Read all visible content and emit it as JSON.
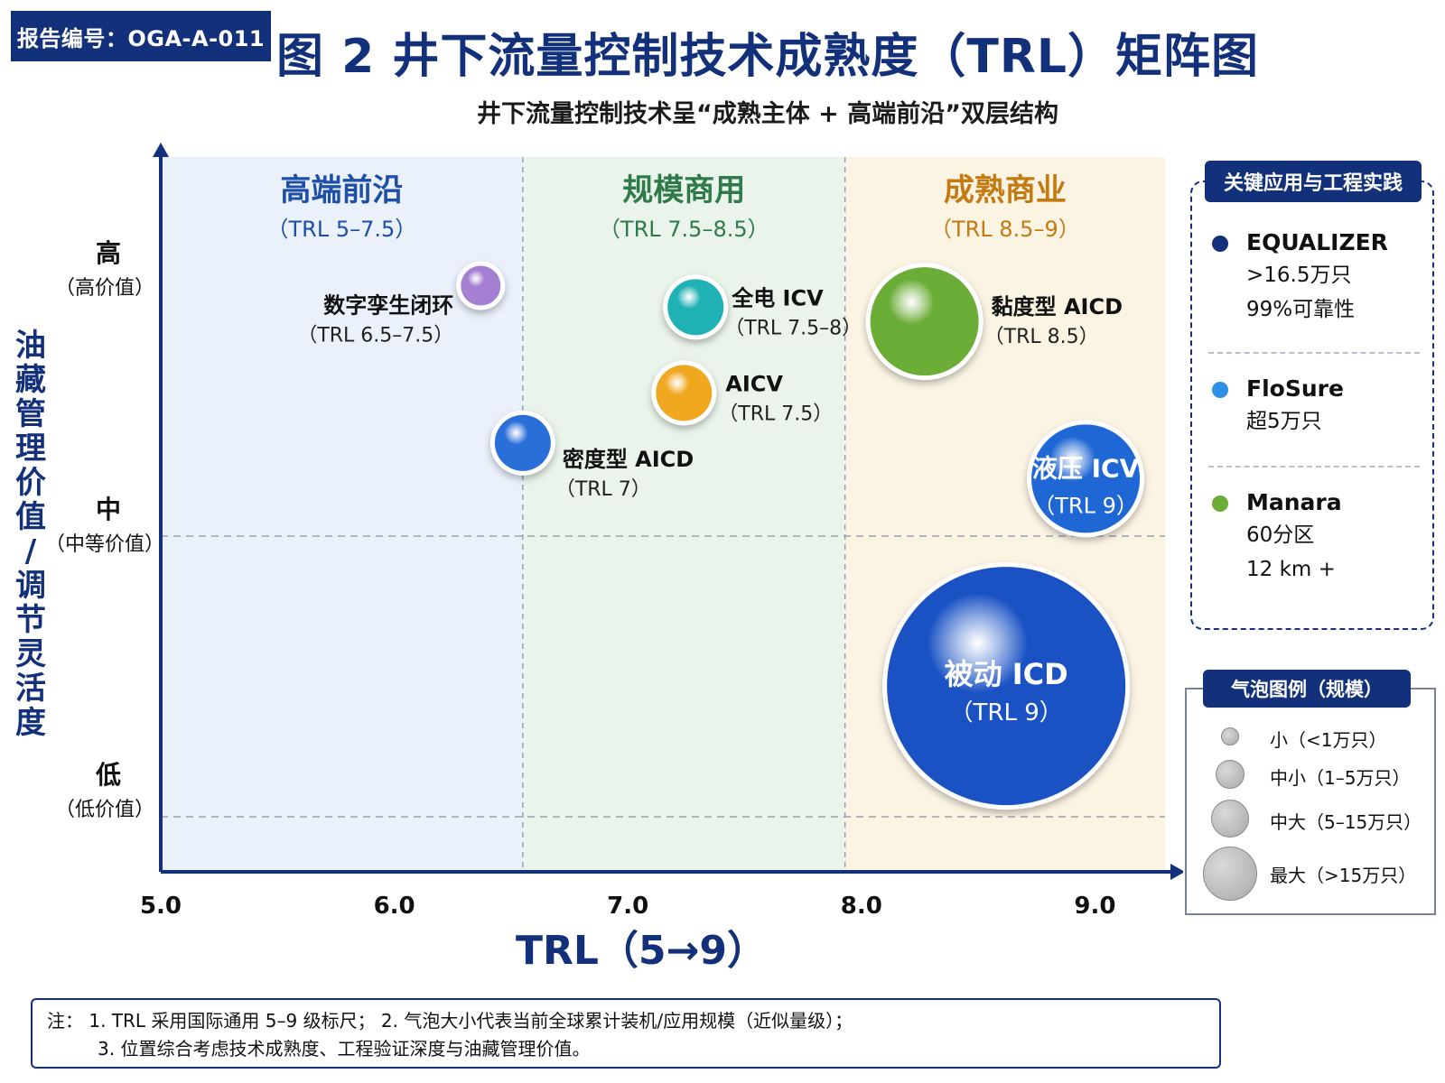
{
  "header": {
    "report_id": "报告编号：OGA-A-011",
    "title": "图 2 井下流量控制技术成熟度（TRL）矩阵图",
    "subtitle": "井下流量控制技术呈“成熟主体 + 高端前沿”双层结构"
  },
  "chart_data": {
    "type": "scatter",
    "title": "图 2 井下流量控制技术成熟度（TRL）矩阵图",
    "xlabel": "TRL（5→9）",
    "ylabel": "油藏管理价值／调节灵活度",
    "xlim": [
      5.0,
      9.3
    ],
    "x_ticks": [
      "5.0",
      "6.0",
      "7.0",
      "8.0",
      "9.0"
    ],
    "y_levels": [
      {
        "label": "高",
        "sub": "（高价值）"
      },
      {
        "label": "中",
        "sub": "（中等价值）"
      },
      {
        "label": "低",
        "sub": "（低价值）"
      }
    ],
    "zones": [
      {
        "name": "高端前沿",
        "range": "（TRL 5–7.5）",
        "from": 5.0,
        "to": 6.55,
        "color": "#eaf1fb",
        "text_color": "#1e4fa8"
      },
      {
        "name": "规模商用",
        "range": "（TRL 7.5–8.5）",
        "from": 6.55,
        "to": 7.93,
        "color": "#eaf4ea",
        "text_color": "#2e7a4a"
      },
      {
        "name": "成熟商业",
        "range": "（TRL 8.5–9）",
        "from": 7.93,
        "to": 9.3,
        "color": "#fcf4e3",
        "text_color": "#c47a12"
      }
    ],
    "points": [
      {
        "name": "数字孪生闭环",
        "trl": "（TRL 6.5–7.5）",
        "x": 6.37,
        "value": 0.82,
        "size": "小",
        "color": "#a57fd1",
        "label_inside": false
      },
      {
        "name": "全电 ICV",
        "trl": "（TRL 7.5–8）",
        "x": 7.29,
        "value": 0.79,
        "size": "中小",
        "color": "#1fb1b3",
        "label_inside": false
      },
      {
        "name": "AICV",
        "trl": "（TRL 7.5）",
        "x": 7.24,
        "value": 0.67,
        "size": "中小",
        "color": "#f0a820",
        "label_inside": false
      },
      {
        "name": "密度型 AICD",
        "trl": "（TRL 7）",
        "x": 6.55,
        "value": 0.6,
        "size": "中小",
        "color": "#2a6fd8",
        "label_inside": false
      },
      {
        "name": "黏度型 AICD",
        "trl": "（TRL 8.5）",
        "x": 8.27,
        "value": 0.77,
        "size": "中大",
        "color": "#6cad38",
        "label_inside": false
      },
      {
        "name": "液压 ICV",
        "trl": "（TRL 9）",
        "x": 8.96,
        "value": 0.55,
        "size": "中大",
        "color": "#1f67d4",
        "label_inside": true
      },
      {
        "name": "被动 ICD",
        "trl": "（TRL 9）",
        "x": 8.62,
        "value": 0.26,
        "size": "最大",
        "color": "#1a52c4",
        "label_inside": true
      }
    ]
  },
  "side_panel": {
    "title": "关键应用与工程实践",
    "items": [
      {
        "name": "EQUALIZER",
        "lines": [
          ">16.5万只",
          "99%可靠性"
        ],
        "color": "#13307a"
      },
      {
        "name": "FloSure",
        "lines": [
          "超5万只"
        ],
        "color": "#2d8fe6"
      },
      {
        "name": "Manara",
        "lines": [
          "60分区",
          "12 km +"
        ],
        "color": "#6cad38"
      }
    ]
  },
  "size_legend": {
    "title": "气泡图例（规模）",
    "items": [
      {
        "label": "小（<1万只）"
      },
      {
        "label": "中小（1–5万只）"
      },
      {
        "label": "中大（5–15万只）"
      },
      {
        "label": "最大（>15万只）"
      }
    ]
  },
  "note": {
    "line1": "注：  1. TRL 采用国际通用 5–9 级标尺；  2. 气泡大小代表当前全球累计装机/应用规模（近似量级）；",
    "line2": "3. 位置综合考虑技术成熟度、工程验证深度与油藏管理价值。"
  }
}
